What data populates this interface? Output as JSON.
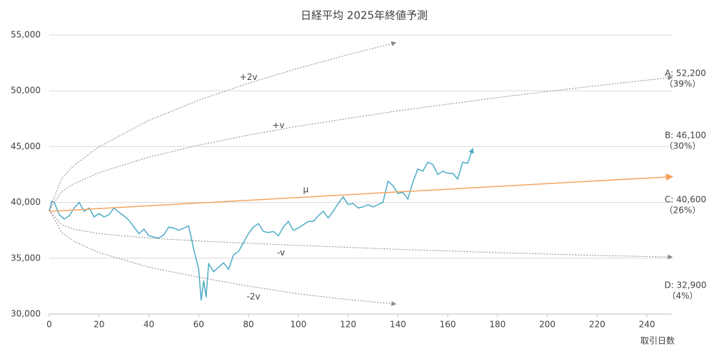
{
  "chart_data": {
    "type": "line",
    "title": "日経平均 2025年終値予測",
    "x_label": "取引日数",
    "xlim": [
      0,
      250
    ],
    "xticks": [
      0,
      20,
      40,
      60,
      80,
      100,
      120,
      140,
      160,
      180,
      200,
      220,
      240
    ],
    "ylim": [
      30000,
      55000
    ],
    "yticks": [
      {
        "value": 30000,
        "label": "30,000"
      },
      {
        "value": 35000,
        "label": "35,000"
      },
      {
        "value": 40000,
        "label": "40,000"
      },
      {
        "value": 45000,
        "label": "45,000"
      },
      {
        "value": 50000,
        "label": "50,000"
      },
      {
        "value": 55000,
        "label": "55,000"
      }
    ],
    "grid": true,
    "series": [
      {
        "color": "#4bacc6",
        "style": "solid",
        "x": [
          0,
          1,
          2,
          4,
          6,
          8,
          10,
          12,
          14,
          16,
          18,
          20,
          22,
          24,
          26,
          28,
          30,
          32,
          34,
          36,
          38,
          40,
          42,
          44,
          46,
          48,
          50,
          52,
          54,
          56,
          58,
          60,
          61,
          62,
          63,
          64,
          66,
          68,
          70,
          72,
          74,
          76,
          78,
          80,
          82,
          84,
          86,
          88,
          90,
          92,
          94,
          96,
          98,
          100,
          102,
          104,
          106,
          108,
          110,
          112,
          114,
          116,
          118,
          120,
          122,
          124,
          126,
          128,
          130,
          132,
          134,
          136,
          138,
          140,
          142,
          144,
          146,
          148,
          150,
          152,
          154,
          156,
          158,
          160,
          162,
          164,
          166,
          168,
          170
        ],
        "values": [
          39200,
          40100,
          40000,
          38900,
          38500,
          38800,
          39500,
          40000,
          39200,
          39500,
          38700,
          39000,
          38700,
          38900,
          39500,
          39100,
          38800,
          38400,
          37800,
          37200,
          37600,
          37000,
          36900,
          36800,
          37100,
          37800,
          37700,
          37500,
          37700,
          37900,
          35800,
          34000,
          31200,
          33000,
          31500,
          34500,
          33800,
          34200,
          34600,
          34000,
          35300,
          35600,
          36400,
          37200,
          37800,
          38100,
          37400,
          37300,
          37400,
          37000,
          37800,
          38300,
          37500,
          37700,
          38000,
          38300,
          38300,
          38800,
          39200,
          38600,
          39200,
          39900,
          40500,
          39800,
          39900,
          39500,
          39600,
          39800,
          39600,
          39800,
          40000,
          41900,
          41500,
          40800,
          40900,
          40300,
          41800,
          43000,
          42800,
          43600,
          43400,
          42500,
          42800,
          42600,
          42600,
          42100,
          43600,
          43500,
          44800
        ]
      },
      {
        "name": "+2v",
        "color": "#888888",
        "style": "dotted",
        "x": [
          0,
          5,
          10,
          20,
          40,
          60,
          80,
          100,
          120,
          139
        ],
        "values": [
          39300,
          42145,
          43323,
          44989,
          47345,
          49153,
          50678,
          52020,
          53235,
          54300
        ]
      },
      {
        "name": "+v",
        "color": "#888888",
        "style": "dotted",
        "x": [
          0,
          5,
          10,
          20,
          40,
          60,
          80,
          100,
          140,
          180,
          220,
          250
        ],
        "values": [
          39300,
          40983,
          41680,
          42666,
          44060,
          45129,
          46031,
          46826,
          48205,
          49397,
          50463,
          51200
        ]
      },
      {
        "name": "μ",
        "color": "#f4a460",
        "style": "solid",
        "x": [
          0,
          250
        ],
        "values": [
          39200,
          42300
        ]
      },
      {
        "name": "-v",
        "color": "#888888",
        "style": "dotted",
        "x": [
          0,
          5,
          10,
          20,
          40,
          60,
          80,
          100,
          140,
          180,
          220,
          250
        ],
        "values": [
          39300,
          38000,
          37600,
          37200,
          36800,
          36550,
          36350,
          36150,
          35800,
          35500,
          35250,
          35100
        ]
      },
      {
        "name": "-2v",
        "color": "#888888",
        "style": "dotted",
        "x": [
          0,
          5,
          10,
          20,
          40,
          60,
          80,
          100,
          120,
          139
        ],
        "values": [
          39300,
          37300,
          36500,
          35500,
          34200,
          33300,
          32500,
          31800,
          31300,
          30900
        ]
      }
    ],
    "annotations": [
      {
        "text": "A: 52,200",
        "sub": "（39%）"
      },
      {
        "text": "B: 46,100",
        "sub": "（30%）"
      },
      {
        "text": "C: 40,600",
        "sub": "（26%）"
      },
      {
        "text": "D: 32,900",
        "sub": "（4%）"
      }
    ]
  }
}
